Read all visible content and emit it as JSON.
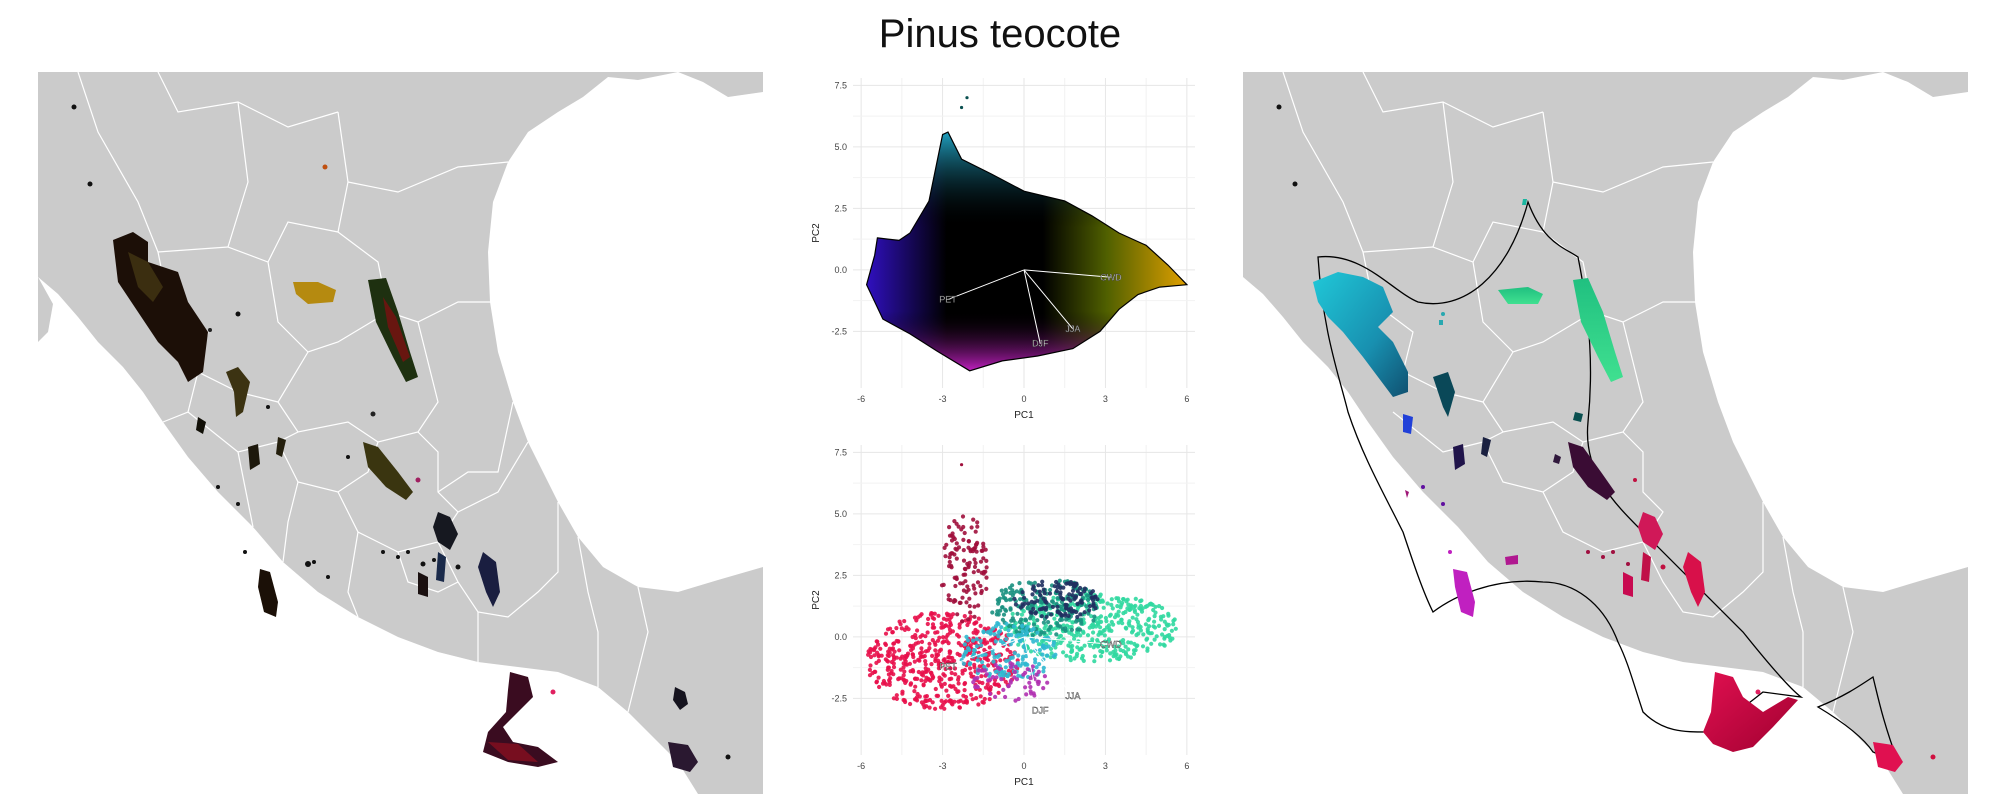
{
  "page": {
    "title": "Pinus teocote"
  },
  "colors": {
    "land": "#cbcbcb",
    "borders": "#ffffff",
    "hull": "#000000",
    "grid": "#ebebeb"
  },
  "chart_data": [
    {
      "type": "scatter",
      "panel": "top",
      "xlabel": "PC1",
      "ylabel": "PC2",
      "xlim": [
        -6.3,
        6.3
      ],
      "ylim": [
        -4.8,
        7.8
      ],
      "xticks": [
        "-6",
        "-3",
        "0",
        "3",
        "6"
      ],
      "yticks": [
        "-2.5",
        "0.0",
        "2.5",
        "5.0",
        "7.5"
      ],
      "xtick_values": [
        -6,
        -3,
        0,
        3,
        6
      ],
      "ytick_values": [
        -2.5,
        0,
        2.5,
        5,
        7.5
      ],
      "grid": true,
      "color_scheme": "2D color wheel over PC space",
      "loadings": [
        {
          "label": "PET",
          "x": -2.8,
          "y": -1.2
        },
        {
          "label": "CWD",
          "x": 3.2,
          "y": -0.3
        },
        {
          "label": "JJA",
          "x": 1.8,
          "y": -2.4
        },
        {
          "label": "DJF",
          "x": 0.6,
          "y": -3.0
        }
      ],
      "outliers": [
        {
          "x": -2.1,
          "y": 7.0
        },
        {
          "x": -2.3,
          "y": 6.6
        }
      ]
    },
    {
      "type": "scatter",
      "panel": "bottom",
      "xlabel": "PC1",
      "ylabel": "PC2",
      "xlim": [
        -6.3,
        6.3
      ],
      "ylim": [
        -4.8,
        7.8
      ],
      "xticks": [
        "-6",
        "-3",
        "0",
        "3",
        "6"
      ],
      "yticks": [
        "-2.5",
        "0.0",
        "2.5",
        "5.0",
        "7.5"
      ],
      "xtick_values": [
        -6,
        -3,
        0,
        3,
        6
      ],
      "ytick_values": [
        -2.5,
        0,
        2.5,
        5,
        7.5
      ],
      "grid": true,
      "color_scheme": "points colored by geographic cluster",
      "loadings": [
        {
          "label": "PET",
          "x": -2.8,
          "y": -1.2
        },
        {
          "label": "CWD",
          "x": 3.2,
          "y": -0.3
        },
        {
          "label": "JJA",
          "x": 1.8,
          "y": -2.4
        },
        {
          "label": "DJF",
          "x": 0.6,
          "y": -3.0
        }
      ]
    }
  ]
}
